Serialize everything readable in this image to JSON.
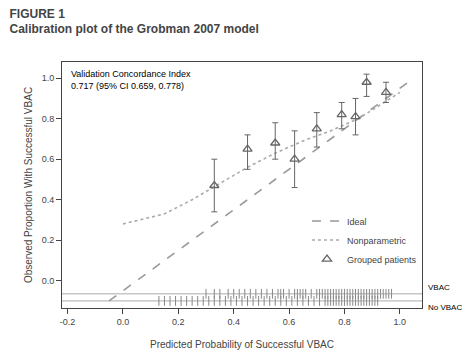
{
  "chart_data": {
    "type": "scatter",
    "subtitle": "FIGURE 1",
    "title": "Calibration plot of the Grobman 2007 model",
    "annotations": [
      "Validation Concordance Index\n0.717 (95% CI 0.659, 0.778)"
    ],
    "xlabel": "Predicted Probability of Successful VBAC",
    "ylabel": "Observed Proportion With Successful VBAC",
    "xlim": [
      -0.22,
      1.08
    ],
    "ylim": [
      -0.135,
      1.08
    ],
    "xticks": [
      -0.2,
      {
        "value": 0.0,
        "label": "0.0"
      },
      0.2,
      0.4,
      0.6,
      0.8,
      {
        "value": 1.0,
        "label": "1.0"
      }
    ],
    "yticks": [
      {
        "value": 0.0,
        "label": "0.0"
      },
      0.2,
      0.4,
      0.6,
      0.8,
      {
        "value": 1.0,
        "label": "1.0"
      }
    ],
    "grid": false,
    "legend": "lower right",
    "series": [
      {
        "name": "Ideal",
        "type": "line",
        "line_style": "dashed",
        "color": "#999999",
        "x": [
          -0.05,
          1.05
        ],
        "values": [
          -0.1,
          1.0
        ]
      },
      {
        "name": "Nonparametric",
        "type": "line",
        "line_style": "dotted",
        "color": "#aaaaaa",
        "x": [
          0.0,
          0.15,
          0.25,
          0.35,
          0.45,
          0.55,
          0.65,
          0.75,
          0.85,
          0.92,
          1.0
        ],
        "values": [
          0.28,
          0.33,
          0.4,
          0.48,
          0.56,
          0.63,
          0.69,
          0.74,
          0.8,
          0.86,
          0.93
        ]
      },
      {
        "name": "Grouped patients",
        "type": "scatter",
        "marker": "triangle",
        "color": "#666666",
        "x": [
          0.33,
          0.45,
          0.55,
          0.62,
          0.7,
          0.79,
          0.84,
          0.88,
          0.95
        ],
        "values": [
          0.47,
          0.65,
          0.68,
          0.6,
          0.75,
          0.82,
          0.81,
          0.98,
          0.93
        ],
        "error_lo": [
          0.13,
          0.1,
          0.08,
          0.14,
          0.09,
          0.07,
          0.09,
          0.07,
          0.05
        ],
        "error_hi": [
          0.13,
          0.07,
          0.1,
          0.14,
          0.08,
          0.06,
          0.09,
          0.04,
          0.05
        ]
      }
    ],
    "rugs": [
      {
        "label": "VBAC",
        "y": -0.065,
        "color": "#888888",
        "x": [
          0.3,
          0.33,
          0.35,
          0.38,
          0.4,
          0.42,
          0.44,
          0.46,
          0.48,
          0.5,
          0.52,
          0.54,
          0.56,
          0.57,
          0.58,
          0.6,
          0.62,
          0.63,
          0.64,
          0.65,
          0.66,
          0.68,
          0.7,
          0.71,
          0.72,
          0.73,
          0.74,
          0.75,
          0.76,
          0.77,
          0.78,
          0.79,
          0.8,
          0.81,
          0.82,
          0.83,
          0.84,
          0.85,
          0.86,
          0.87,
          0.88,
          0.89,
          0.9,
          0.91,
          0.92,
          0.93,
          0.94,
          0.95,
          0.96,
          0.97
        ]
      },
      {
        "label": "No VBAC",
        "y": -0.1,
        "color": "#888888",
        "x": [
          0.13,
          0.15,
          0.17,
          0.19,
          0.21,
          0.23,
          0.25,
          0.27,
          0.29,
          0.31,
          0.33,
          0.35,
          0.37,
          0.39,
          0.41,
          0.43,
          0.45,
          0.47,
          0.49,
          0.51,
          0.53,
          0.55,
          0.57,
          0.59,
          0.61,
          0.63,
          0.65,
          0.67,
          0.69,
          0.71,
          0.73,
          0.74,
          0.75,
          0.76,
          0.77,
          0.78,
          0.79,
          0.8,
          0.81,
          0.82,
          0.83,
          0.84,
          0.85,
          0.86,
          0.87,
          0.88,
          0.89,
          0.9,
          0.91,
          0.92
        ]
      }
    ]
  }
}
